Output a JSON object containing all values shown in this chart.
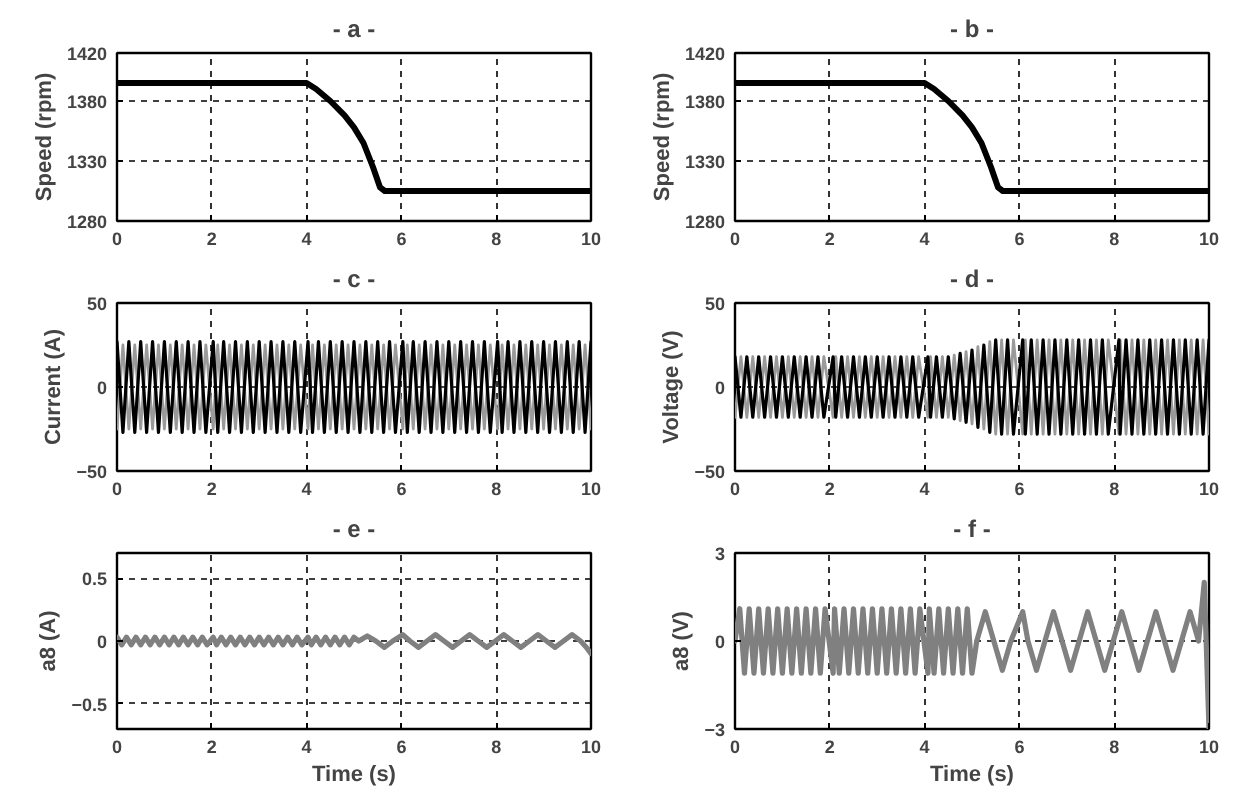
{
  "chart_data": [
    {
      "type": "line",
      "title": "- a -",
      "ylabel": "Speed (rpm)",
      "xlim": [
        0,
        10
      ],
      "xticks": [
        0,
        2,
        4,
        6,
        8,
        10
      ],
      "ylim": [
        1280,
        1420
      ],
      "yticks": [
        1280,
        1330,
        1380,
        1420
      ],
      "grid": true,
      "series": [
        {
          "color": "#000000",
          "x": [
            0,
            4,
            4.2,
            4.5,
            4.8,
            5.0,
            5.2,
            5.4,
            5.55,
            5.65,
            10
          ],
          "values": [
            1395,
            1395,
            1390,
            1380,
            1368,
            1358,
            1345,
            1325,
            1308,
            1305,
            1305
          ]
        }
      ]
    },
    {
      "type": "line",
      "title": "- b -",
      "ylabel": "Speed (rpm)",
      "xlim": [
        0,
        10
      ],
      "xticks": [
        0,
        2,
        4,
        6,
        8,
        10
      ],
      "ylim": [
        1280,
        1420
      ],
      "yticks": [
        1280,
        1330,
        1380,
        1420
      ],
      "grid": true,
      "series": [
        {
          "color": "#000000",
          "x": [
            0,
            4,
            4.2,
            4.5,
            4.8,
            5.0,
            5.2,
            5.4,
            5.55,
            5.65,
            10
          ],
          "values": [
            1395,
            1395,
            1390,
            1380,
            1368,
            1358,
            1345,
            1325,
            1308,
            1305,
            1305
          ]
        }
      ]
    },
    {
      "type": "line",
      "title": "- c -",
      "ylabel": "Current (A)",
      "xlim": [
        0,
        10
      ],
      "xticks": [
        0,
        2,
        4,
        6,
        8,
        10
      ],
      "ylim": [
        -50,
        50
      ],
      "yticks": [
        -50,
        0,
        50
      ],
      "grid": true,
      "x": [
        0,
        0.125,
        0.25,
        0.375,
        0.5,
        0.625,
        0.75,
        0.875,
        1,
        1.125,
        1.25,
        1.375,
        1.5,
        1.625,
        1.75,
        1.875,
        2.03,
        2.125,
        2.25,
        2.375,
        2.5,
        2.625,
        2.75,
        2.875,
        3,
        3.125,
        3.25,
        3.375,
        3.5,
        3.625,
        3.75,
        3.875,
        4.03,
        4.125,
        4.25,
        4.375,
        4.5,
        4.625,
        4.75,
        4.875,
        5,
        5.125,
        5.25,
        5.375,
        5.5,
        5.625,
        5.75,
        5.875,
        6.03,
        6.125,
        6.25,
        6.375,
        6.5,
        6.625,
        6.75,
        6.875,
        7,
        7.125,
        7.25,
        7.375,
        7.5,
        7.625,
        7.75,
        7.875,
        8.03,
        8.125,
        8.25,
        8.375,
        8.5,
        8.625,
        8.75,
        8.875,
        9,
        9.125,
        9.25,
        9.375,
        9.5,
        9.625,
        9.75,
        9.875,
        10
      ],
      "series": [
        {
          "color": "#9a9a9a",
          "values": [
            -25,
            25,
            -25,
            25,
            -25,
            25,
            -25,
            25,
            -25,
            25,
            -25,
            25,
            -25,
            25,
            -25,
            25,
            -25,
            25,
            -25,
            25,
            -25,
            25,
            -25,
            25,
            -25,
            25,
            -25,
            25,
            -25,
            25,
            -25,
            25,
            -25,
            25,
            -25,
            25,
            -25,
            25,
            -25,
            25,
            -25,
            25,
            -25,
            25,
            -25,
            25,
            -25,
            25,
            -25,
            25,
            -25,
            25,
            -25,
            25,
            -25,
            25,
            -25,
            25,
            -25,
            25,
            -25,
            25,
            -25,
            25,
            -25,
            25,
            -25,
            25,
            -25,
            25,
            -25,
            25,
            -25,
            25,
            -25,
            25,
            -25,
            25,
            -25,
            25,
            -25
          ]
        },
        {
          "color": "#000000",
          "values": [
            27,
            -27,
            27,
            -27,
            27,
            -27,
            27,
            -27,
            27,
            -27,
            27,
            -27,
            27,
            -27,
            27,
            -27,
            27,
            -27,
            27,
            -27,
            27,
            -27,
            27,
            -27,
            27,
            -27,
            27,
            -27,
            27,
            -27,
            27,
            -27,
            27,
            -27,
            27,
            -27,
            27,
            -27,
            27,
            -27,
            27,
            -27,
            27,
            -27,
            27,
            -27,
            27,
            -27,
            27,
            -27,
            27,
            -27,
            27,
            -27,
            27,
            -27,
            27,
            -27,
            27,
            -27,
            27,
            -27,
            27,
            -27,
            27,
            -27,
            27,
            -27,
            27,
            -27,
            27,
            -27,
            27,
            -27,
            27,
            -27,
            27,
            -27,
            27,
            -27,
            27
          ]
        }
      ]
    },
    {
      "type": "line",
      "title": "- d -",
      "ylabel": "Voltage (V)",
      "xlim": [
        0,
        10
      ],
      "xticks": [
        0,
        2,
        4,
        6,
        8,
        10
      ],
      "ylim": [
        -50,
        50
      ],
      "yticks": [
        -50,
        0,
        50
      ],
      "grid": true,
      "x": [
        0,
        0.125,
        0.25,
        0.375,
        0.5,
        0.625,
        0.75,
        0.875,
        1,
        1.125,
        1.25,
        1.375,
        1.5,
        1.625,
        1.75,
        1.875,
        2.07,
        2.125,
        2.25,
        2.375,
        2.5,
        2.625,
        2.75,
        2.875,
        3,
        3.125,
        3.25,
        3.375,
        3.5,
        3.625,
        3.75,
        3.875,
        4.07,
        4.125,
        4.25,
        4.375,
        4.5,
        4.625,
        4.75,
        4.875,
        5,
        5.125,
        5.25,
        5.375,
        5.5,
        5.625,
        5.75,
        5.875,
        6.07,
        6.125,
        6.25,
        6.375,
        6.5,
        6.625,
        6.75,
        6.875,
        7,
        7.125,
        7.25,
        7.375,
        7.5,
        7.625,
        7.75,
        7.875,
        8.1,
        8.125,
        8.25,
        8.375,
        8.5,
        8.625,
        8.75,
        8.875,
        9,
        9.125,
        9.25,
        9.375,
        9.5,
        9.625,
        9.75,
        9.875,
        10
      ],
      "series": [
        {
          "color": "#9a9a9a",
          "values": [
            -18,
            18,
            -18,
            18,
            -18,
            18,
            -18,
            18,
            -18,
            18,
            -18,
            18,
            -18,
            18,
            -18,
            18,
            -18,
            18,
            -18,
            18,
            -18,
            18,
            -18,
            18,
            -18,
            18,
            -18,
            18,
            -18,
            18,
            -18,
            18,
            -18,
            18,
            -18,
            18,
            -18,
            19,
            -20,
            21,
            -22,
            24,
            -25,
            27,
            -28,
            28,
            -28,
            28,
            -28,
            28,
            -28,
            28,
            -28,
            28,
            -28,
            28,
            -28,
            28,
            -28,
            28,
            -28,
            28,
            -28,
            28,
            -28,
            28,
            -28,
            28,
            -28,
            28,
            -28,
            28,
            -28,
            28,
            -28,
            28,
            -28,
            28,
            -28,
            28,
            -28
          ]
        },
        {
          "color": "#000000",
          "values": [
            18,
            -18,
            18,
            -18,
            18,
            -18,
            18,
            -18,
            18,
            -18,
            18,
            -18,
            18,
            -18,
            18,
            -18,
            18,
            -18,
            18,
            -18,
            18,
            -18,
            18,
            -18,
            18,
            -18,
            18,
            -18,
            18,
            -18,
            18,
            -18,
            18,
            -18,
            18,
            -18,
            18,
            -19,
            20,
            -21,
            22,
            -24,
            25,
            -27,
            28,
            -28,
            28,
            -28,
            28,
            -28,
            28,
            -28,
            28,
            -28,
            28,
            -28,
            28,
            -28,
            28,
            -28,
            28,
            -28,
            28,
            -28,
            28,
            -28,
            28,
            -28,
            28,
            -28,
            28,
            -28,
            28,
            -28,
            28,
            -28,
            28,
            -28,
            28,
            -28,
            28
          ]
        }
      ]
    },
    {
      "type": "line",
      "title": "- e -",
      "xlabel": "Time (s)",
      "ylabel": "a8 (A)",
      "xlim": [
        0,
        10
      ],
      "xticks": [
        0,
        2,
        4,
        6,
        8,
        10
      ],
      "ylim": [
        -0.7,
        0.7
      ],
      "yticks": [
        -0.5,
        0,
        0.5
      ],
      "grid": true,
      "series": [
        {
          "color": "#808080",
          "x": [
            0,
            0.1,
            0.2,
            0.3,
            0.4,
            0.5,
            0.6,
            0.7,
            0.8,
            0.9,
            1,
            1.1,
            1.2,
            1.3,
            1.4,
            1.5,
            1.6,
            1.7,
            1.8,
            1.9,
            2.03,
            2.1,
            2.2,
            2.3,
            2.4,
            2.5,
            2.6,
            2.7,
            2.8,
            2.9,
            3,
            3.1,
            3.2,
            3.3,
            3.4,
            3.5,
            3.6,
            3.7,
            3.8,
            3.9,
            4.03,
            4.1,
            4.2,
            4.3,
            4.4,
            4.5,
            4.6,
            4.7,
            4.8,
            4.9,
            5,
            5.1,
            5.28,
            5.46,
            5.64,
            5.82,
            6.03,
            6.18,
            6.36,
            6.54,
            6.72,
            6.9,
            7.08,
            7.26,
            7.44,
            7.62,
            7.8,
            7.98,
            8.16,
            8.34,
            8.52,
            8.7,
            8.88,
            9.06,
            9.24,
            9.42,
            9.6,
            9.78,
            9.9,
            10
          ],
          "values": [
            0.03,
            -0.03,
            0.03,
            -0.03,
            0.03,
            -0.03,
            0.03,
            -0.03,
            0.03,
            -0.03,
            0.03,
            -0.03,
            0.03,
            -0.03,
            0.03,
            -0.03,
            0.03,
            -0.03,
            0.03,
            -0.03,
            0.03,
            -0.03,
            0.03,
            -0.03,
            0.03,
            -0.03,
            0.03,
            -0.03,
            0.03,
            -0.03,
            0.03,
            -0.03,
            0.03,
            -0.03,
            0.03,
            -0.03,
            0.03,
            -0.03,
            0.03,
            -0.03,
            0.03,
            -0.03,
            0.03,
            -0.03,
            0.03,
            -0.03,
            0.03,
            -0.03,
            0.03,
            -0.03,
            0.03,
            0,
            0.04,
            0,
            -0.05,
            0,
            0.05,
            0,
            -0.05,
            0,
            0.05,
            0,
            -0.05,
            0,
            0.05,
            0,
            -0.05,
            0,
            0.05,
            0,
            -0.05,
            0,
            0.05,
            0,
            -0.05,
            0,
            0.05,
            0,
            -0.05,
            -0.1
          ]
        }
      ]
    },
    {
      "type": "line",
      "title": "- f -",
      "xlabel": "Time (s)",
      "ylabel": "a8 (V)",
      "xlim": [
        0,
        10
      ],
      "xticks": [
        0,
        2,
        4,
        6,
        8,
        10
      ],
      "ylim": [
        -3,
        3
      ],
      "yticks": [
        -3,
        0,
        3
      ],
      "grid": true,
      "series": [
        {
          "color": "#808080",
          "x": [
            0,
            0.1,
            0.2,
            0.3,
            0.4,
            0.5,
            0.6,
            0.7,
            0.8,
            0.9,
            1,
            1.1,
            1.2,
            1.3,
            1.4,
            1.5,
            1.6,
            1.7,
            1.8,
            1.9,
            2.07,
            2.1,
            2.2,
            2.3,
            2.4,
            2.5,
            2.6,
            2.7,
            2.8,
            2.9,
            3,
            3.1,
            3.2,
            3.3,
            3.4,
            3.5,
            3.6,
            3.7,
            3.8,
            3.9,
            4.07,
            4.1,
            4.2,
            4.3,
            4.4,
            4.5,
            4.6,
            4.7,
            4.8,
            4.9,
            5,
            5.1,
            5.28,
            5.46,
            5.64,
            5.82,
            6.07,
            6.18,
            6.36,
            6.54,
            6.72,
            6.9,
            7.08,
            7.26,
            7.44,
            7.62,
            7.8,
            7.98,
            8.16,
            8.34,
            8.52,
            8.7,
            8.88,
            9.06,
            9.24,
            9.42,
            9.6,
            9.78,
            9.84,
            9.9,
            10
          ],
          "values": [
            0,
            1.1,
            -1.1,
            1.1,
            -1.1,
            1.1,
            -1.1,
            1.1,
            -1.1,
            1.1,
            -1.1,
            1.1,
            -1.1,
            1.1,
            -1.1,
            1.1,
            -1.1,
            1.1,
            -1.1,
            1.1,
            -1.1,
            1.1,
            -1.1,
            1.1,
            -1.1,
            1.1,
            -1.1,
            1.1,
            -1.1,
            1.1,
            -1.1,
            1.1,
            -1.1,
            1.1,
            -1.1,
            1.1,
            -1.1,
            1.1,
            -1.1,
            1.1,
            -1.1,
            1.1,
            -1.1,
            1.1,
            -1.1,
            1.1,
            -1.1,
            1.1,
            -1.1,
            1.1,
            -1.1,
            0,
            1.0,
            0,
            -1.0,
            0,
            1.0,
            0,
            -1.0,
            0,
            1.0,
            0,
            -1.0,
            0,
            1.0,
            0,
            -1.0,
            0,
            1.0,
            0,
            -1.0,
            0,
            1.0,
            0,
            -1.0,
            0,
            1.0,
            0,
            1.0,
            2.0,
            -3.0
          ]
        }
      ]
    }
  ]
}
